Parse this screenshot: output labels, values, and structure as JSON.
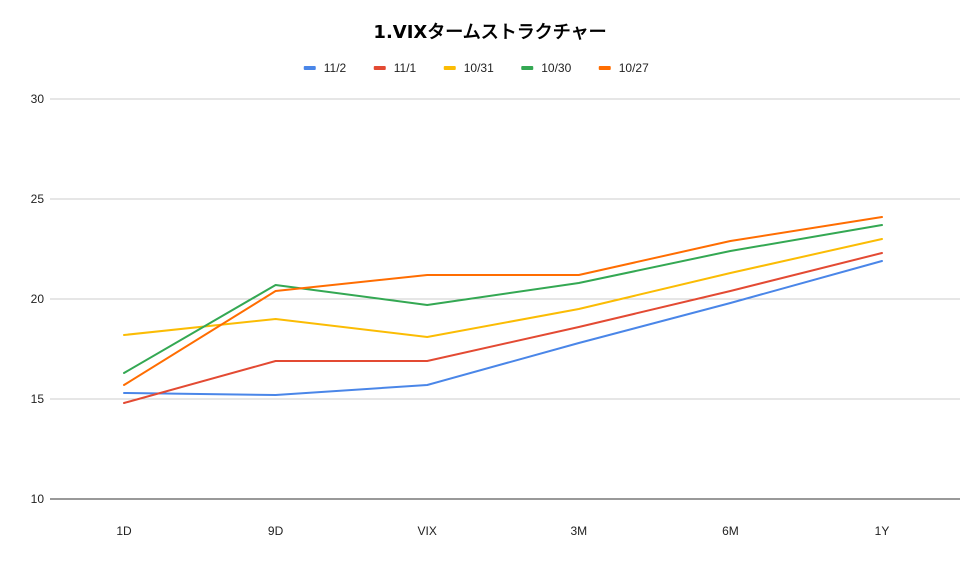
{
  "chart_data": {
    "type": "line",
    "title": "1.VIXタームストラクチャー",
    "categories": [
      "1D",
      "9D",
      "VIX",
      "3M",
      "6M",
      "1Y"
    ],
    "ylim": [
      10,
      30
    ],
    "yticks": [
      10,
      15,
      20,
      25,
      30
    ],
    "grid": true,
    "legend_position": "top",
    "series": [
      {
        "name": "11/2",
        "color": "#4a86e8",
        "values": [
          15.3,
          15.2,
          15.7,
          17.8,
          19.8,
          21.9
        ]
      },
      {
        "name": "11/1",
        "color": "#e34a33",
        "values": [
          14.8,
          16.9,
          16.9,
          18.6,
          20.4,
          22.3
        ]
      },
      {
        "name": "10/31",
        "color": "#fbbc04",
        "values": [
          18.2,
          19.0,
          18.1,
          19.5,
          21.3,
          23.0
        ]
      },
      {
        "name": "10/30",
        "color": "#34a853",
        "values": [
          16.3,
          20.7,
          19.7,
          20.8,
          22.4,
          23.7
        ]
      },
      {
        "name": "10/27",
        "color": "#ff6d01",
        "values": [
          15.7,
          20.4,
          21.2,
          21.2,
          22.9,
          24.1
        ]
      }
    ]
  }
}
